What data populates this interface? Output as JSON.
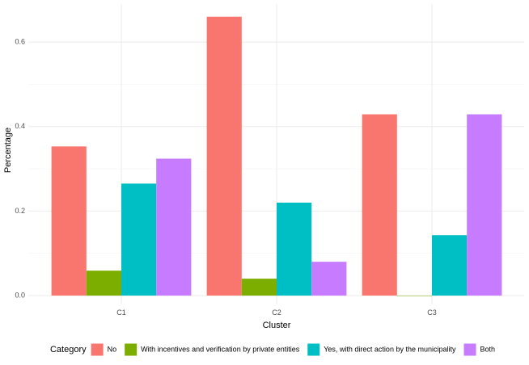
{
  "chart_data": {
    "type": "bar",
    "x_label": "Cluster",
    "y_label": "Percentage",
    "categories": [
      "C1",
      "C2",
      "C3"
    ],
    "legend_title": "Category",
    "legend_position": "bottom",
    "series": [
      {
        "name": "No",
        "color": "#F8766D",
        "values": [
          0.353,
          0.66,
          0.429
        ]
      },
      {
        "name": "With incentives and verification by private entities",
        "color": "#7CAE00",
        "values": [
          0.059,
          0.04,
          0
        ]
      },
      {
        "name": "Yes, with direct action by the municipality",
        "color": "#00BFC4",
        "values": [
          0.265,
          0.22,
          0.143
        ]
      },
      {
        "name": "Both",
        "color": "#C77CFF",
        "values": [
          0.324,
          0.08,
          0.429
        ]
      }
    ],
    "ylim": [
      -0.02,
      0.69
    ],
    "yticks": [
      {
        "value": 0,
        "label": "0.0"
      },
      0.2,
      0.4,
      0.6
    ],
    "minor_yticks": [
      0.1,
      0.3,
      0.5
    ],
    "grid": true
  }
}
